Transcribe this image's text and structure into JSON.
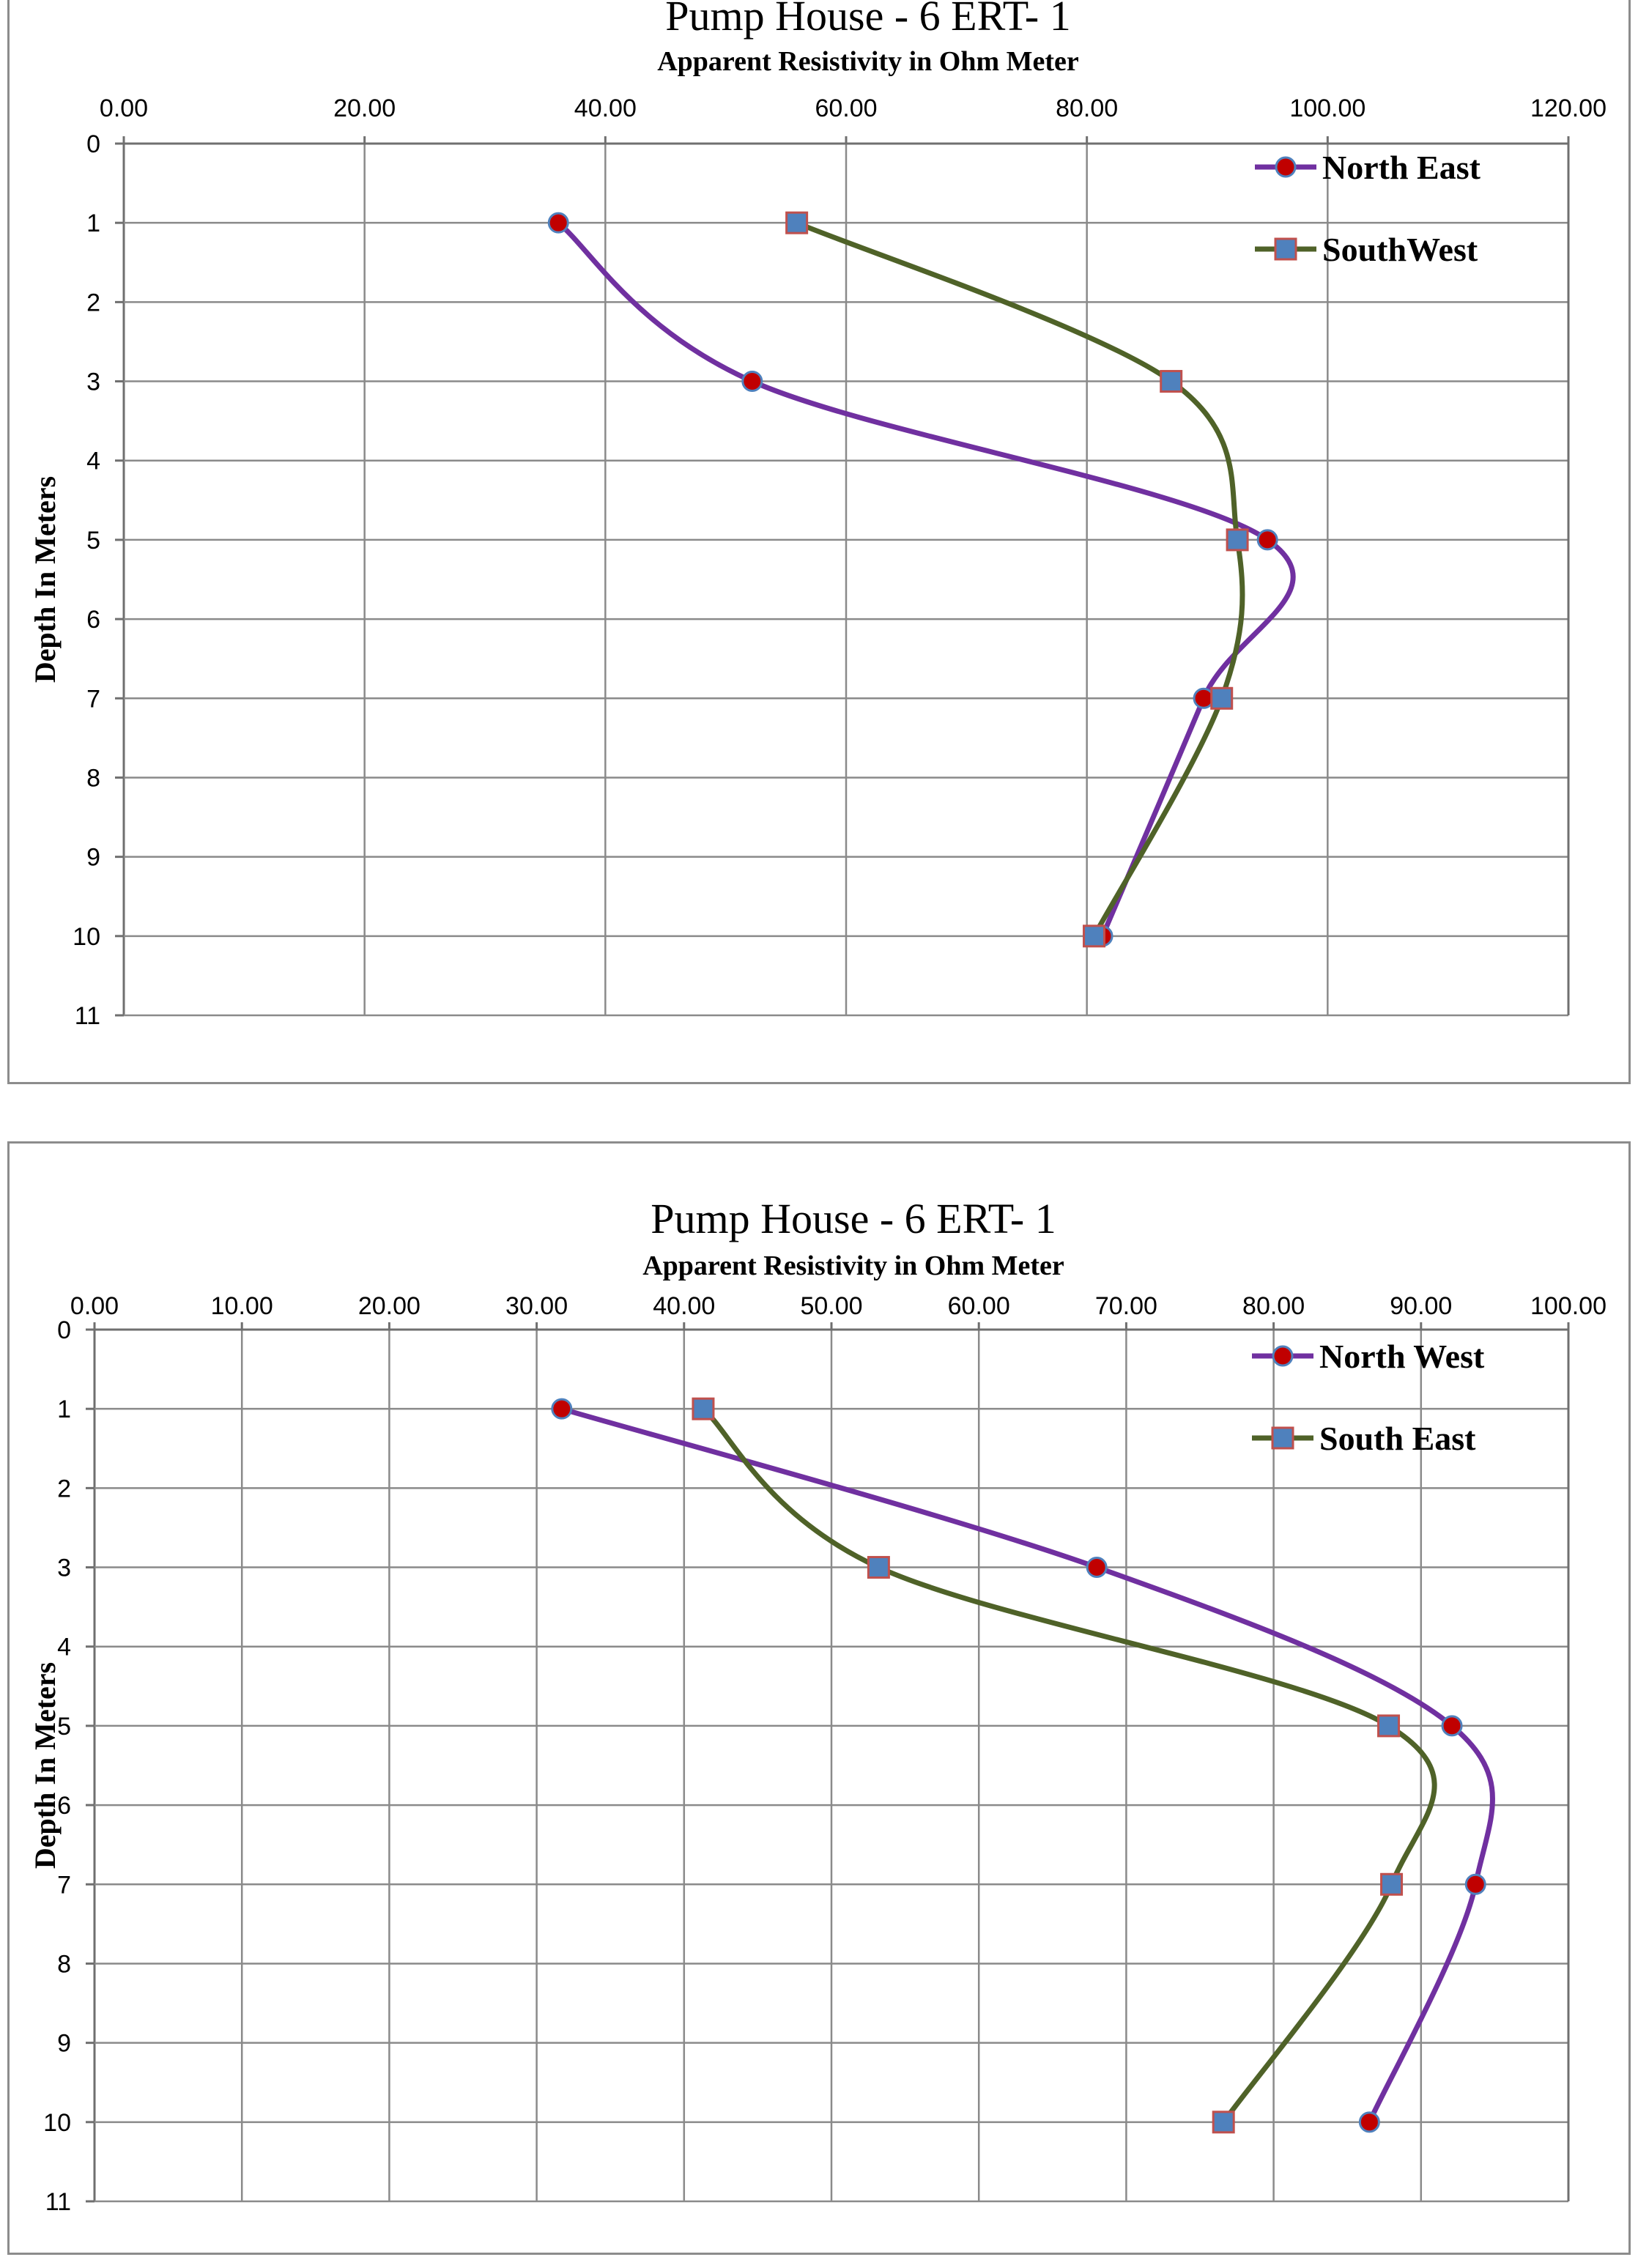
{
  "chart_data": [
    {
      "type": "line",
      "title": "Pump House - 6   ERT- 1",
      "xlabel": "Apparent Resistivity in Ohm Meter",
      "ylabel": "Depth In Meters",
      "xlim": [
        0,
        120
      ],
      "ylim": [
        0,
        11
      ],
      "y_inverted": true,
      "x_axis_position": "top",
      "x_ticks": [
        "0.00",
        "20.00",
        "40.00",
        "60.00",
        "80.00",
        "100.00",
        "120.00"
      ],
      "y_ticks": [
        "0",
        "1",
        "2",
        "3",
        "4",
        "5",
        "6",
        "7",
        "8",
        "9",
        "10",
        "11"
      ],
      "grid": true,
      "legend_position": "top-right",
      "series": [
        {
          "name": "North East",
          "color": "#7030a0",
          "marker": "circle",
          "marker_color": "#c00000",
          "smooth": true,
          "points": [
            {
              "x": 36.1,
              "y": 1
            },
            {
              "x": 52.2,
              "y": 3
            },
            {
              "x": 95.0,
              "y": 5
            },
            {
              "x": 89.7,
              "y": 7
            },
            {
              "x": 81.3,
              "y": 10
            }
          ]
        },
        {
          "name": "SouthWest",
          "color": "#4f6228",
          "marker": "square",
          "marker_color": "#4f81bd",
          "marker_edge": "#c0504d",
          "smooth": true,
          "points": [
            {
              "x": 55.9,
              "y": 1
            },
            {
              "x": 87.0,
              "y": 3
            },
            {
              "x": 92.5,
              "y": 5
            },
            {
              "x": 91.2,
              "y": 7
            },
            {
              "x": 80.6,
              "y": 10
            }
          ]
        }
      ]
    },
    {
      "type": "line",
      "title": "Pump House - 6  ERT- 1",
      "xlabel": "Apparent Resistivity in Ohm Meter",
      "ylabel": "Depth In Meters",
      "xlim": [
        0,
        100
      ],
      "ylim": [
        0,
        11
      ],
      "y_inverted": true,
      "x_axis_position": "top",
      "x_ticks": [
        "0.00",
        "10.00",
        "20.00",
        "30.00",
        "40.00",
        "50.00",
        "60.00",
        "70.00",
        "80.00",
        "90.00",
        "100.00"
      ],
      "y_ticks": [
        "0",
        "1",
        "2",
        "3",
        "4",
        "5",
        "6",
        "7",
        "8",
        "9",
        "10",
        "11"
      ],
      "grid": true,
      "legend_position": "top-right",
      "series": [
        {
          "name": "North West",
          "color": "#7030a0",
          "marker": "circle",
          "marker_color": "#c00000",
          "smooth": true,
          "points": [
            {
              "x": 31.7,
              "y": 1
            },
            {
              "x": 68.0,
              "y": 3
            },
            {
              "x": 92.1,
              "y": 5
            },
            {
              "x": 93.7,
              "y": 7
            },
            {
              "x": 86.5,
              "y": 10
            }
          ]
        },
        {
          "name": "South East",
          "color": "#4f6228",
          "marker": "square",
          "marker_color": "#4f81bd",
          "marker_edge": "#c0504d",
          "smooth": true,
          "points": [
            {
              "x": 41.3,
              "y": 1
            },
            {
              "x": 53.2,
              "y": 3
            },
            {
              "x": 87.8,
              "y": 5
            },
            {
              "x": 88.0,
              "y": 7
            },
            {
              "x": 76.6,
              "y": 10
            }
          ]
        }
      ]
    }
  ]
}
